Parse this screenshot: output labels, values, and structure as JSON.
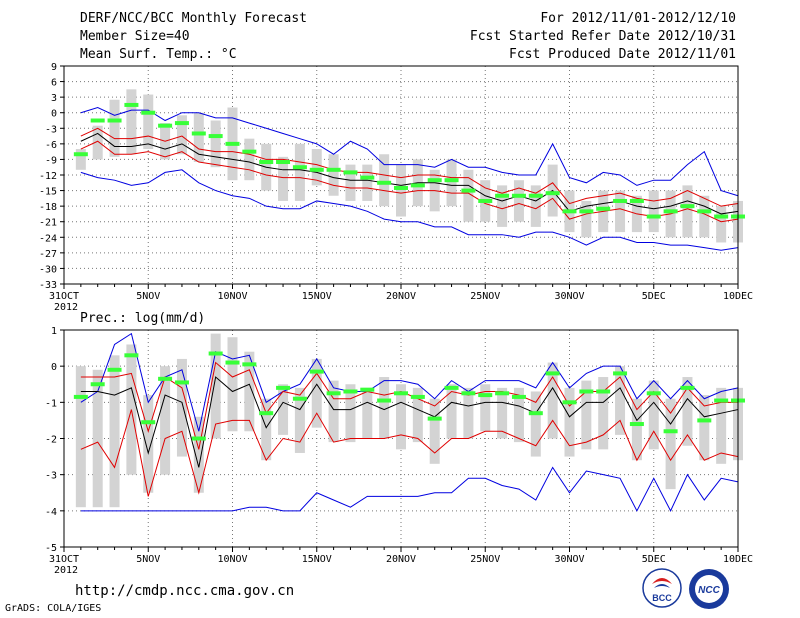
{
  "header": {
    "title": "DERF/NCC/BCC Monthly Forecast",
    "member": "Member Size=40",
    "variable": "Mean Surf. Temp.: °C",
    "period": "For 2012/11/01-2012/12/10",
    "start": "Fcst Started Refer Date 2012/10/31",
    "produced": "Fcst Produced Date 2012/11/01"
  },
  "footer": {
    "url": "http://cmdp.ncc.cma.gov.cn",
    "credit": "GrADS: COLA/IGES",
    "logo_bcc": "BCC",
    "logo_ncc": "NCC"
  },
  "colors": {
    "bar": "#d3d3d3",
    "member": "#38ff38",
    "mean": "#000000",
    "inner": "#e00000",
    "outer": "#0000e0",
    "grid": "#777777"
  },
  "chart_data": [
    {
      "id": "temp",
      "type": "line",
      "title": "Mean Surf. Temp.: °C",
      "ylim": [
        -33,
        9
      ],
      "yticks": [
        9,
        6,
        3,
        0,
        -3,
        -6,
        -9,
        -12,
        -15,
        -18,
        -21,
        -24,
        -27,
        -30,
        -33
      ],
      "yticklabels": [
        "9",
        "6",
        "3",
        "0",
        "-3",
        "-6",
        "-9",
        "-12",
        "-15",
        "-18",
        "-21",
        "-24",
        "-27",
        "-30",
        "-33"
      ],
      "xlim": [
        0,
        40
      ],
      "xticks": [
        0,
        5,
        10,
        15,
        20,
        25,
        30,
        35,
        40
      ],
      "xticklabels": [
        "31OCT",
        "5NOV",
        "10NOV",
        "15NOV",
        "20NOV",
        "25NOV",
        "30NOV",
        "5DEC",
        "10DEC"
      ],
      "xsublabel": "2012",
      "days": [
        1,
        2,
        3,
        4,
        5,
        6,
        7,
        8,
        9,
        10,
        11,
        12,
        13,
        14,
        15,
        16,
        17,
        18,
        19,
        20,
        21,
        22,
        23,
        24,
        25,
        26,
        27,
        28,
        29,
        30,
        31,
        32,
        33,
        34,
        35,
        36,
        37,
        38,
        39,
        40
      ],
      "series": [
        {
          "name": "mean",
          "values": [
            -5.5,
            -4,
            -6.5,
            -6.5,
            -6,
            -7,
            -6,
            -8,
            -8.5,
            -9,
            -9.5,
            -10.5,
            -11,
            -11,
            -11.5,
            -12.5,
            -13,
            -13,
            -13.5,
            -14,
            -13.5,
            -13.5,
            -14,
            -14,
            -16,
            -17,
            -16,
            -17,
            -15,
            -19,
            -18,
            -17.5,
            -17,
            -18,
            -18.5,
            -18,
            -17,
            -18,
            -19.5,
            -19
          ]
        },
        {
          "name": "upper_inner",
          "values": [
            -4.5,
            -3,
            -5,
            -5,
            -4.5,
            -5.5,
            -4.5,
            -7,
            -7.5,
            -7.5,
            -8,
            -9,
            -9,
            -9.5,
            -10,
            -11,
            -11.5,
            -11.5,
            -12,
            -12.5,
            -12,
            -12,
            -12.5,
            -12.5,
            -14.5,
            -15.5,
            -14.5,
            -15.5,
            -13.5,
            -17.5,
            -16.5,
            -16,
            -15.5,
            -16.5,
            -17,
            -16.5,
            -15,
            -16.5,
            -18,
            -17.5
          ]
        },
        {
          "name": "lower_inner",
          "values": [
            -7,
            -5.5,
            -8,
            -8,
            -7.5,
            -8.5,
            -7.5,
            -9.5,
            -10,
            -10.5,
            -11,
            -12,
            -12.5,
            -12.5,
            -13,
            -14,
            -14.5,
            -14.5,
            -15,
            -15.5,
            -15,
            -15,
            -15.5,
            -15.5,
            -17.5,
            -18.5,
            -17.5,
            -18.5,
            -16.5,
            -20.5,
            -19.5,
            -19,
            -18.5,
            -19.5,
            -20,
            -19.5,
            -18.5,
            -19.5,
            -21,
            -20.5
          ]
        },
        {
          "name": "upper_outer",
          "values": [
            0,
            1,
            -0.5,
            0.5,
            0.5,
            -1.5,
            0,
            0,
            -1,
            -1,
            -2,
            -3,
            -4,
            -5,
            -6,
            -8,
            -5.5,
            -7,
            -10,
            -10,
            -10,
            -10.5,
            -9,
            -10.5,
            -10.5,
            -11.5,
            -12,
            -12,
            -6,
            -12.5,
            -13.5,
            -11.5,
            -12,
            -14,
            -13,
            -13,
            -10,
            -7.5,
            -15,
            -16
          ]
        },
        {
          "name": "lower_outer",
          "values": [
            -11.5,
            -12.5,
            -13,
            -14,
            -13.5,
            -11.5,
            -11,
            -13.5,
            -15,
            -16,
            -16.5,
            -18,
            -18.5,
            -18.5,
            -17,
            -17.5,
            -18,
            -19,
            -20.5,
            -21,
            -21,
            -22,
            -22,
            -23.5,
            -23.5,
            -23.5,
            -24,
            -23,
            -23,
            -24,
            -25.5,
            -24,
            -24,
            -25,
            -25,
            -25.5,
            -25.5,
            -26,
            -26.5,
            -26
          ]
        },
        {
          "name": "bar_top",
          "values": [
            -7,
            -2.5,
            2.5,
            4.5,
            3.5,
            -2,
            -0.5,
            0,
            -1.5,
            1,
            -5,
            -6,
            -8.5,
            -6,
            -7,
            -8,
            -10,
            -10,
            -8,
            -10,
            -9,
            -11,
            -9,
            -11,
            -13,
            -14,
            -13,
            -14,
            -10,
            -15,
            -17,
            -15,
            -15,
            -16,
            -15,
            -15,
            -14,
            -16,
            -18,
            -17
          ]
        },
        {
          "name": "bar_bottom",
          "values": [
            -11,
            -9,
            -8.5,
            -8,
            -7,
            -9,
            -8,
            -9.5,
            -10.5,
            -13,
            -13,
            -15,
            -17,
            -17,
            -14,
            -16,
            -17,
            -17,
            -18,
            -20,
            -18,
            -19,
            -18,
            -21,
            -21,
            -22,
            -21,
            -22,
            -20,
            -23,
            -24,
            -23,
            -23,
            -23,
            -23,
            -24,
            -24,
            -24,
            -25,
            -25
          ]
        },
        {
          "name": "control",
          "values": [
            -8,
            -1.5,
            -1.5,
            1.5,
            0,
            -2.5,
            -2,
            -4,
            -4.5,
            -6,
            -7.5,
            -9.5,
            -9.5,
            -10.5,
            -11,
            -11,
            -11.5,
            -12.5,
            -13.5,
            -14.5,
            -14,
            -13,
            -13,
            -15,
            -17,
            -16,
            -16,
            -16,
            -15.5,
            -19,
            -19,
            -18.5,
            -17,
            -17,
            -20,
            -19,
            -18,
            -19,
            -20,
            -20
          ]
        }
      ]
    },
    {
      "id": "prec",
      "type": "line",
      "title": "Prec.: log(mm/d)",
      "ylim": [
        -5,
        1
      ],
      "yticks": [
        1,
        0,
        -1,
        -2,
        -3,
        -4,
        -5
      ],
      "yticklabels": [
        "1",
        "0",
        "-1",
        "-2",
        "-3",
        "-4",
        "-5"
      ],
      "xlim": [
        0,
        40
      ],
      "xticks": [
        0,
        5,
        10,
        15,
        20,
        25,
        30,
        35,
        40
      ],
      "xticklabels": [
        "31OCT",
        "5NOV",
        "10NOV",
        "15NOV",
        "20NOV",
        "25NOV",
        "30NOV",
        "5DEC",
        "10DEC"
      ],
      "xsublabel": "2012",
      "days": [
        1,
        2,
        3,
        4,
        5,
        6,
        7,
        8,
        9,
        10,
        11,
        12,
        13,
        14,
        15,
        16,
        17,
        18,
        19,
        20,
        21,
        22,
        23,
        24,
        25,
        26,
        27,
        28,
        29,
        30,
        31,
        32,
        33,
        34,
        35,
        36,
        37,
        38,
        39,
        40
      ],
      "series": [
        {
          "name": "mean",
          "values": [
            -0.7,
            -0.7,
            -0.8,
            -0.6,
            -2.4,
            -0.8,
            -1.0,
            -2.8,
            -0.3,
            -0.7,
            -0.5,
            -1.7,
            -1.0,
            -1.2,
            -0.5,
            -1.2,
            -1.2,
            -1.0,
            -1.2,
            -1.0,
            -1.2,
            -1.4,
            -1.0,
            -1.1,
            -1.0,
            -1.0,
            -1.1,
            -1.3,
            -0.6,
            -1.4,
            -1.0,
            -1.0,
            -0.6,
            -1.5,
            -1.0,
            -1.6,
            -0.9,
            -1.4,
            -1.3,
            -1.2
          ]
        },
        {
          "name": "upper_inner",
          "values": [
            -0.3,
            -0.3,
            -0.3,
            -0.2,
            -1.8,
            -0.3,
            -0.6,
            -2.3,
            0.1,
            -0.3,
            -0.1,
            -1.3,
            -0.7,
            -0.8,
            -0.2,
            -0.9,
            -0.9,
            -0.7,
            -0.8,
            -0.7,
            -0.9,
            -1.1,
            -0.7,
            -0.8,
            -0.7,
            -0.7,
            -0.8,
            -1.0,
            -0.3,
            -1.1,
            -0.7,
            -0.7,
            -0.3,
            -1.2,
            -0.7,
            -1.3,
            -0.6,
            -1.1,
            -1.0,
            -1.0
          ]
        },
        {
          "name": "lower_inner",
          "values": [
            -2.3,
            -2.1,
            -2.8,
            -1.2,
            -3.6,
            -2.0,
            -1.8,
            -3.5,
            -1.6,
            -1.5,
            -1.5,
            -2.6,
            -2.0,
            -2.1,
            -1.3,
            -2.1,
            -2.0,
            -2.0,
            -2.0,
            -1.9,
            -2.0,
            -2.4,
            -2.0,
            -2.0,
            -1.8,
            -1.8,
            -2.0,
            -2.2,
            -1.5,
            -2.2,
            -2.1,
            -1.9,
            -1.5,
            -2.6,
            -1.8,
            -2.6,
            -1.9,
            -2.6,
            -2.4,
            -2.5
          ]
        },
        {
          "name": "upper_outer",
          "values": [
            -1.0,
            -0.7,
            0.6,
            0.9,
            -1.0,
            -0.3,
            -0.1,
            -1.8,
            0.4,
            0.2,
            0.3,
            -1.0,
            -0.7,
            -0.5,
            0.2,
            -0.6,
            -0.7,
            -0.7,
            -0.4,
            -0.4,
            -0.5,
            -0.9,
            -0.4,
            -0.7,
            -0.4,
            -0.4,
            -0.4,
            -0.6,
            0.1,
            -0.6,
            -0.2,
            0.0,
            0.0,
            -0.9,
            -0.4,
            -0.9,
            -0.4,
            -0.9,
            -0.7,
            -0.6
          ]
        },
        {
          "name": "lower_outer",
          "values": [
            -4.0,
            -4.0,
            -4.0,
            -4.0,
            -4.0,
            -4.0,
            -4.0,
            -4.0,
            -4.0,
            -4.0,
            -3.9,
            -3.9,
            -4.0,
            -4.0,
            -3.5,
            -3.7,
            -3.9,
            -3.6,
            -3.6,
            -3.6,
            -3.6,
            -3.5,
            -3.5,
            -3.1,
            -3.1,
            -3.3,
            -3.4,
            -3.7,
            -2.8,
            -3.5,
            -2.9,
            -3.0,
            -3.1,
            -4.0,
            -3.1,
            -4.0,
            -3.0,
            -3.7,
            -3.1,
            -3.2
          ]
        },
        {
          "name": "bar_top",
          "values": [
            0.0,
            -0.1,
            0.3,
            0.6,
            -0.8,
            0.0,
            0.2,
            -1.4,
            0.9,
            0.8,
            0.4,
            -0.9,
            -0.5,
            -0.6,
            0.2,
            -0.4,
            -0.5,
            -0.6,
            -0.3,
            -0.5,
            -0.6,
            -0.9,
            -0.5,
            -0.6,
            -0.5,
            -0.6,
            -0.6,
            -0.7,
            0.1,
            -0.6,
            -0.4,
            -0.3,
            0.0,
            -0.9,
            -0.4,
            -0.9,
            -0.3,
            -0.8,
            -0.6,
            -0.6
          ]
        },
        {
          "name": "bar_bottom",
          "values": [
            -3.9,
            -3.9,
            -3.9,
            -3.0,
            -3.5,
            -3.0,
            -2.5,
            -3.5,
            -2.0,
            -1.8,
            -1.8,
            -2.6,
            -1.9,
            -2.4,
            -1.7,
            -2.1,
            -2.1,
            -2.0,
            -2.0,
            -2.3,
            -2.1,
            -2.7,
            -2.0,
            -2.0,
            -1.8,
            -2.0,
            -2.1,
            -2.5,
            -2.0,
            -2.5,
            -2.3,
            -2.3,
            -1.9,
            -2.6,
            -2.3,
            -3.4,
            -2.2,
            -2.6,
            -2.7,
            -2.6
          ]
        },
        {
          "name": "control",
          "values": [
            -0.85,
            -0.5,
            -0.1,
            0.3,
            -1.55,
            -0.35,
            -0.45,
            -2.0,
            0.35,
            0.1,
            0.05,
            -1.3,
            -0.6,
            -0.9,
            -0.15,
            -0.75,
            -0.7,
            -0.65,
            -0.95,
            -0.75,
            -0.85,
            -1.45,
            -0.6,
            -0.75,
            -0.8,
            -0.75,
            -0.85,
            -1.3,
            -0.2,
            -1.0,
            -0.7,
            -0.7,
            -0.2,
            -1.6,
            -0.75,
            -1.8,
            -0.6,
            -1.5,
            -0.95,
            -0.95
          ]
        }
      ]
    }
  ]
}
